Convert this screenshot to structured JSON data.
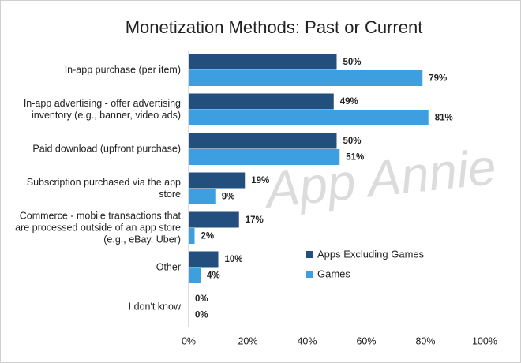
{
  "chart_data": {
    "type": "bar",
    "orientation": "horizontal",
    "title": "Monetization Methods: Past or Current",
    "watermark": "App Annie",
    "categories": [
      "In-app purchase (per item)",
      "In-app advertising - offer advertising inventory (e.g., banner, video ads)",
      "Paid download (upfront purchase)",
      "Subscription purchased via the app store",
      "Commerce - mobile transactions that are processed outside of an app store (e.g., eBay, Uber)",
      "Other",
      "I don't know"
    ],
    "series": [
      {
        "name": "Apps Excluding Games",
        "color": "#234f7f",
        "values": [
          50,
          49,
          50,
          19,
          17,
          10,
          0
        ],
        "value_labels": [
          "50%",
          "49%",
          "50%",
          "19%",
          "17%",
          "10%",
          "0%"
        ]
      },
      {
        "name": "Games",
        "color": "#3d9fe0",
        "values": [
          79,
          81,
          51,
          9,
          2,
          4,
          0
        ],
        "value_labels": [
          "79%",
          "81%",
          "51%",
          "9%",
          "2%",
          "4%",
          "0%"
        ]
      }
    ],
    "xlim": [
      0,
      100
    ],
    "xticks": [
      {
        "value": 0,
        "label": "0%"
      },
      {
        "value": 20,
        "label": "20%"
      },
      {
        "value": 40,
        "label": "40%"
      },
      {
        "value": 60,
        "label": "60%"
      },
      {
        "value": 80,
        "label": "80%"
      },
      {
        "value": 100,
        "label": "100%"
      }
    ],
    "legend": "right"
  }
}
